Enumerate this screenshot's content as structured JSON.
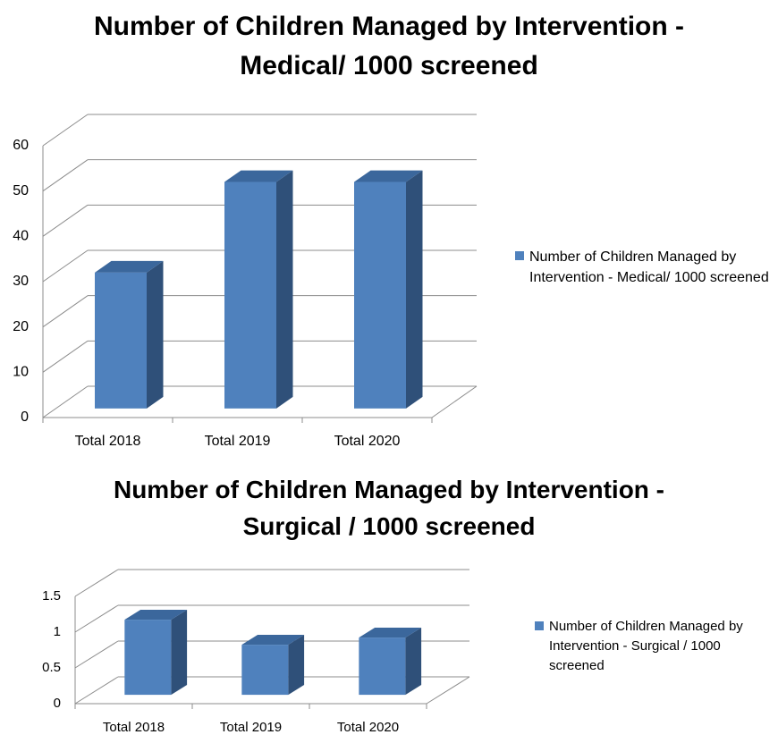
{
  "chart_data": [
    {
      "type": "bar",
      "title": "Number of Children Managed by Intervention - Medical/ 1000 screened",
      "categories": [
        "Total 2018",
        "Total 2019",
        "Total 2020"
      ],
      "series": [
        {
          "name": "Number of Children Managed by Intervention - Medical/ 1000 screened",
          "color": "#4f81bd",
          "values": [
            30,
            50,
            50
          ]
        }
      ],
      "ylim": [
        0,
        60
      ],
      "yticks": [
        0,
        10,
        20,
        30,
        40,
        50,
        60
      ],
      "grid": true,
      "legend": "right"
    },
    {
      "type": "bar",
      "title": "Number of Children Managed by Intervention - Surgical / 1000 screened",
      "categories": [
        "Total 2018",
        "Total 2019",
        "Total 2020"
      ],
      "series": [
        {
          "name": "Number of Children Managed by Intervention - Surgical / 1000 screened",
          "color": "#4f81bd",
          "values": [
            1.05,
            0.7,
            0.8
          ]
        }
      ],
      "ylim": [
        0,
        1.5
      ],
      "yticks": [
        0,
        0.5,
        1,
        1.5
      ],
      "grid": true,
      "legend": "right"
    }
  ]
}
